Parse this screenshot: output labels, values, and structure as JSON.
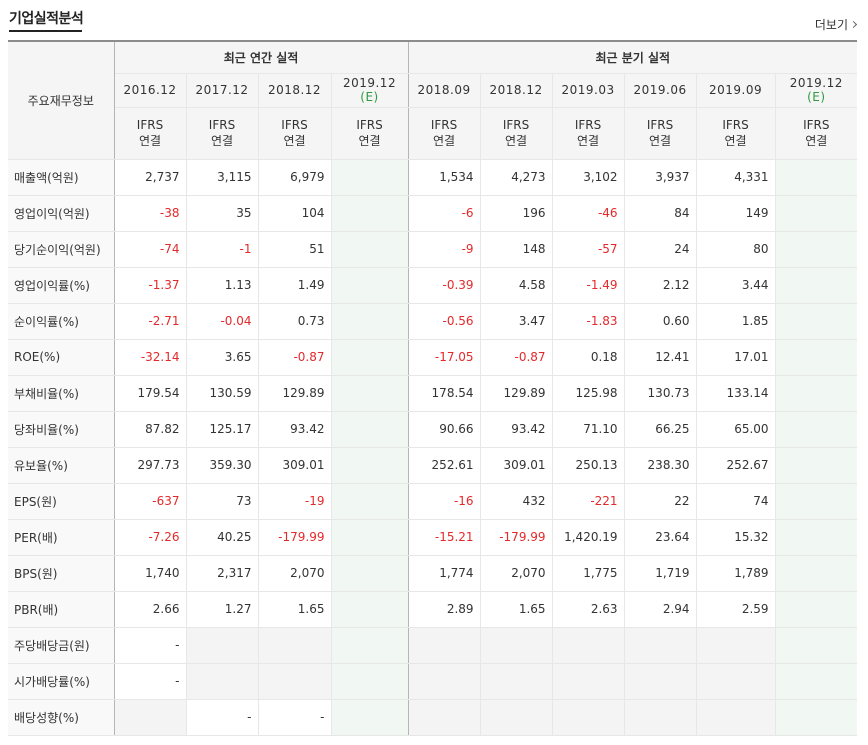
{
  "section": {
    "title": "기업실적분석",
    "more_label": "더보기"
  },
  "header": {
    "row_label": "주요재무정보",
    "annual_group": "최근 연간 실적",
    "quarter_group": "최근 분기 실적",
    "periods": [
      "2016.12",
      "2017.12",
      "2018.12",
      "2019.12",
      "2018.09",
      "2018.12",
      "2019.03",
      "2019.06",
      "2019.09",
      "2019.12"
    ],
    "estimate_mark": "(E)",
    "std_ifrs": "IFRS",
    "std_consol": "연결"
  },
  "colors": {
    "negative": "#e4292b",
    "ifrs": "#e25d24",
    "estimate": "#2f9a3f"
  },
  "rows": [
    {
      "label": "매출액(억원)",
      "values": [
        "2,737",
        "3,115",
        "6,979",
        "",
        "1,534",
        "4,273",
        "3,102",
        "3,937",
        "4,331",
        ""
      ]
    },
    {
      "label": "영업이익(억원)",
      "values": [
        "-38",
        "35",
        "104",
        "",
        "-6",
        "196",
        "-46",
        "84",
        "149",
        ""
      ]
    },
    {
      "label": "당기순이익(억원)",
      "values": [
        "-74",
        "-1",
        "51",
        "",
        "-9",
        "148",
        "-57",
        "24",
        "80",
        ""
      ]
    },
    {
      "label": "영업이익률(%)",
      "values": [
        "-1.37",
        "1.13",
        "1.49",
        "",
        "-0.39",
        "4.58",
        "-1.49",
        "2.12",
        "3.44",
        ""
      ]
    },
    {
      "label": "순이익률(%)",
      "values": [
        "-2.71",
        "-0.04",
        "0.73",
        "",
        "-0.56",
        "3.47",
        "-1.83",
        "0.60",
        "1.85",
        ""
      ]
    },
    {
      "label": "ROE(%)",
      "values": [
        "-32.14",
        "3.65",
        "-0.87",
        "",
        "-17.05",
        "-0.87",
        "0.18",
        "12.41",
        "17.01",
        ""
      ]
    },
    {
      "label": "부채비율(%)",
      "values": [
        "179.54",
        "130.59",
        "129.89",
        "",
        "178.54",
        "129.89",
        "125.98",
        "130.73",
        "133.14",
        ""
      ]
    },
    {
      "label": "당좌비율(%)",
      "values": [
        "87.82",
        "125.17",
        "93.42",
        "",
        "90.66",
        "93.42",
        "71.10",
        "66.25",
        "65.00",
        ""
      ]
    },
    {
      "label": "유보율(%)",
      "values": [
        "297.73",
        "359.30",
        "309.01",
        "",
        "252.61",
        "309.01",
        "250.13",
        "238.30",
        "252.67",
        ""
      ]
    },
    {
      "label": "EPS(원)",
      "values": [
        "-637",
        "73",
        "-19",
        "",
        "-16",
        "432",
        "-221",
        "22",
        "74",
        ""
      ]
    },
    {
      "label": "PER(배)",
      "values": [
        "-7.26",
        "40.25",
        "-179.99",
        "",
        "-15.21",
        "-179.99",
        "1,420.19",
        "23.64",
        "15.32",
        ""
      ]
    },
    {
      "label": "BPS(원)",
      "values": [
        "1,740",
        "2,317",
        "2,070",
        "",
        "1,774",
        "2,070",
        "1,775",
        "1,719",
        "1,789",
        ""
      ]
    },
    {
      "label": "PBR(배)",
      "values": [
        "2.66",
        "1.27",
        "1.65",
        "",
        "2.89",
        "1.65",
        "2.63",
        "2.94",
        "2.59",
        ""
      ]
    },
    {
      "label": "주당배당금(원)",
      "values": [
        "-",
        "",
        "",
        "",
        "",
        "",
        "",
        "",
        "",
        ""
      ]
    },
    {
      "label": "시가배당률(%)",
      "values": [
        "-",
        "",
        "",
        "",
        "",
        "",
        "",
        "",
        "",
        ""
      ]
    },
    {
      "label": "배당성향(%)",
      "values": [
        "",
        "-",
        "-",
        "",
        "",
        "",
        "",
        "",
        "",
        ""
      ]
    }
  ]
}
